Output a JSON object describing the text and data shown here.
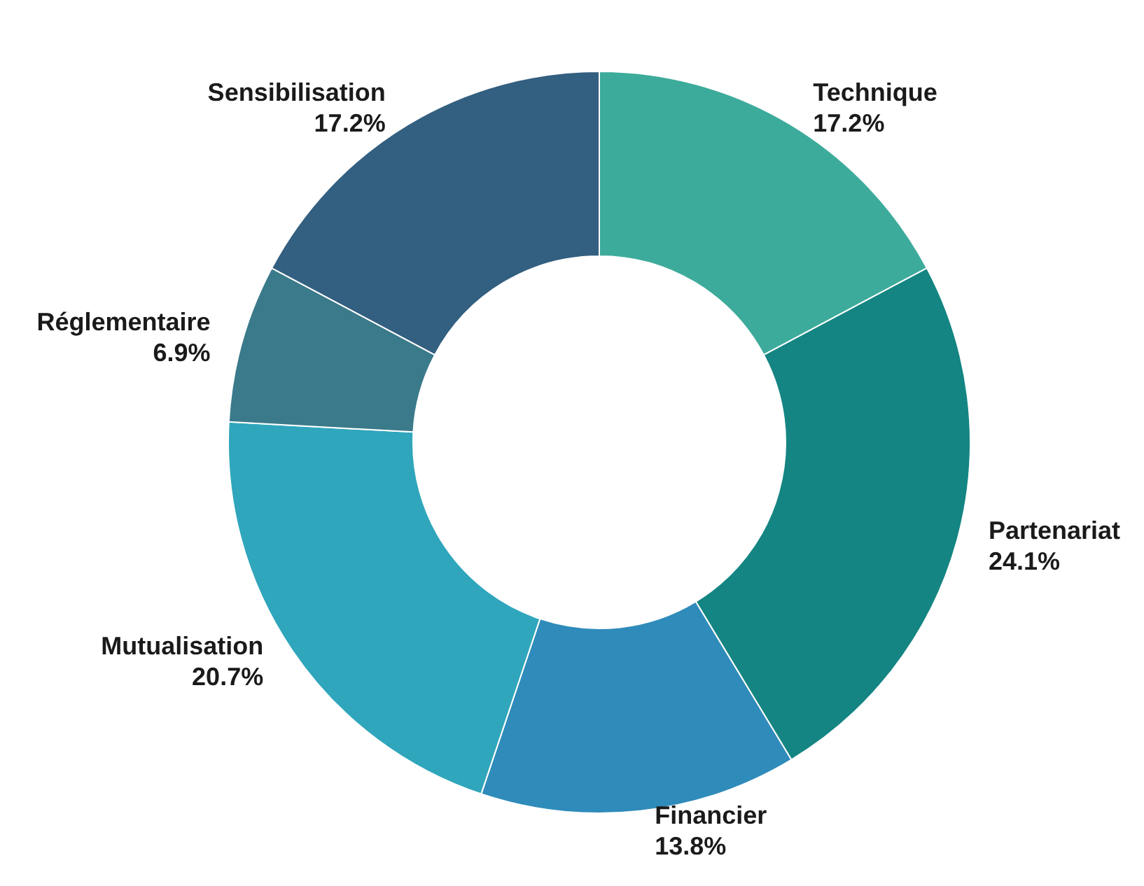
{
  "chart_data": {
    "type": "donut",
    "categories": [
      "Technique",
      "Partenariat",
      "Financier",
      "Mutualisation",
      "Réglementaire",
      "Sensibilisation"
    ],
    "values": [
      17.2,
      24.1,
      13.8,
      20.7,
      6.9,
      17.2
    ],
    "colors": [
      "#3dab9b",
      "#148582",
      "#2f8bba",
      "#2fa6bc",
      "#3a7a8a",
      "#335f80"
    ],
    "value_labels": [
      "17.2%",
      "24.1%",
      "13.8%",
      "20.7%",
      "6.9%",
      "17.2%"
    ],
    "legend": false
  }
}
